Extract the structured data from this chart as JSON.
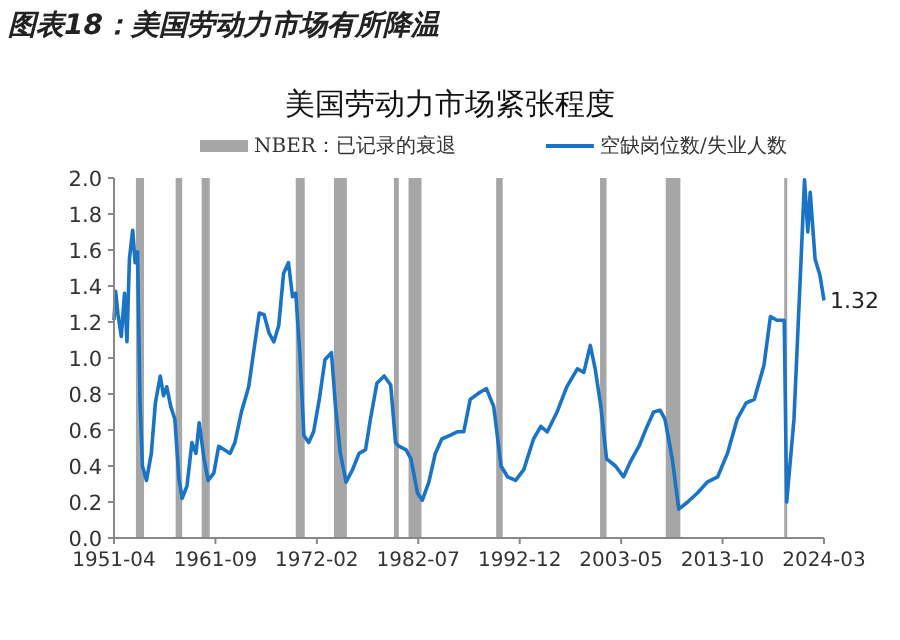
{
  "chart_data": {
    "type": "line",
    "title": "图表18：美国劳动力市场有所降温",
    "subtitle": "美国劳动力市场紧张程度",
    "xlim": [
      "1951-04",
      "2024-03"
    ],
    "xticks": [
      "1951-04",
      "1961-09",
      "1972-02",
      "1982-07",
      "1992-12",
      "2003-05",
      "2013-10",
      "2024-03"
    ],
    "ylim": [
      0,
      2
    ],
    "yticks": [
      {
        "value": 0,
        "label": "0.0"
      },
      {
        "value": 0.2,
        "label": "0.2"
      },
      {
        "value": 0.4,
        "label": "0.4"
      },
      {
        "value": 0.6,
        "label": "0.6"
      },
      {
        "value": 0.8,
        "label": "0.8"
      },
      {
        "value": 1,
        "label": "1.0"
      },
      {
        "value": 1.2,
        "label": "1.2"
      },
      {
        "value": 1.4,
        "label": "1.4"
      },
      {
        "value": 1.6,
        "label": "1.6"
      },
      {
        "value": 1.8,
        "label": "1.8"
      },
      {
        "value": 2,
        "label": "2.0"
      }
    ],
    "grid": false,
    "legend": "top",
    "marker": "none",
    "line_style": "solid",
    "bands": [
      {
        "axis": "x",
        "from": "1953-07",
        "to": "1954-05",
        "label": "NBER：已记录的衰退",
        "color": "#a6a6a6"
      },
      {
        "axis": "x",
        "from": "1957-08",
        "to": "1958-04",
        "color": "#a6a6a6"
      },
      {
        "axis": "x",
        "from": "1960-04",
        "to": "1961-02",
        "color": "#a6a6a6"
      },
      {
        "axis": "x",
        "from": "1969-12",
        "to": "1970-11",
        "color": "#a6a6a6"
      },
      {
        "axis": "x",
        "from": "1973-11",
        "to": "1975-03",
        "color": "#a6a6a6"
      },
      {
        "axis": "x",
        "from": "1980-01",
        "to": "1980-07",
        "color": "#a6a6a6"
      },
      {
        "axis": "x",
        "from": "1981-07",
        "to": "1982-11",
        "color": "#a6a6a6"
      },
      {
        "axis": "x",
        "from": "1990-07",
        "to": "1991-03",
        "color": "#a6a6a6"
      },
      {
        "axis": "x",
        "from": "2001-03",
        "to": "2001-11",
        "color": "#a6a6a6"
      },
      {
        "axis": "x",
        "from": "2007-12",
        "to": "2009-06",
        "color": "#a6a6a6"
      },
      {
        "axis": "x",
        "from": "2020-02",
        "to": "2020-04",
        "color": "#a6a6a6"
      }
    ],
    "annotations": [
      {
        "text": "1.32",
        "x": "2024-03",
        "y": 1.32
      }
    ],
    "x": [
      "1951-04",
      "1951-06",
      "1951-09",
      "1952-01",
      "1952-05",
      "1952-08",
      "1952-11",
      "1953-03",
      "1953-06",
      "1953-09",
      "1953-12",
      "1954-03",
      "1954-08",
      "1955-02",
      "1955-07",
      "1956-01",
      "1956-05",
      "1956-09",
      "1957-02",
      "1957-07",
      "1957-12",
      "1958-04",
      "1958-10",
      "1959-04",
      "1959-09",
      "1960-01",
      "1960-07",
      "1960-12",
      "1961-07",
      "1962-01",
      "1962-08",
      "1963-03",
      "1963-09",
      "1964-05",
      "1965-02",
      "1965-08",
      "1966-03",
      "1966-09",
      "1967-03",
      "1967-09",
      "1968-03",
      "1968-09",
      "1969-03",
      "1969-08",
      "1969-12",
      "1970-05",
      "1970-10",
      "1971-04",
      "1971-10",
      "1972-05",
      "1972-12",
      "1973-08",
      "1974-01",
      "1974-07",
      "1975-02",
      "1975-10",
      "1976-06",
      "1977-02",
      "1977-08",
      "1978-04",
      "1979-01",
      "1979-09",
      "1980-03",
      "1980-07",
      "1981-04",
      "1981-10",
      "1982-06",
      "1982-12",
      "1983-08",
      "1984-04",
      "1984-12",
      "1985-10",
      "1986-07",
      "1987-03",
      "1987-11",
      "1988-11",
      "1989-07",
      "1990-04",
      "1991-01",
      "1991-09",
      "1992-07",
      "1993-05",
      "1994-05",
      "1995-02",
      "1995-10",
      "1996-10",
      "1997-10",
      "1998-11",
      "1999-07",
      "2000-03",
      "2000-09",
      "2001-04",
      "2001-11",
      "2002-10",
      "2003-08",
      "2004-04",
      "2005-03",
      "2006-01",
      "2006-09",
      "2007-05",
      "2007-11",
      "2008-08",
      "2009-04",
      "2010-03",
      "2011-03",
      "2012-03",
      "2013-04",
      "2014-04",
      "2015-04",
      "2016-03",
      "2017-01",
      "2018-01",
      "2018-09",
      "2019-05",
      "2020-02",
      "2020-05",
      "2021-02",
      "2021-10",
      "2022-03",
      "2022-07",
      "2022-10",
      "2023-04",
      "2023-10",
      "2024-03"
    ],
    "series": [
      {
        "name": "空缺岗位数/失业人数",
        "color": "#1a73c4",
        "values": [
          1.21,
          1.37,
          1.24,
          1.12,
          1.36,
          1.09,
          1.55,
          1.71,
          1.53,
          1.59,
          0.77,
          0.4,
          0.32,
          0.47,
          0.75,
          0.9,
          0.79,
          0.84,
          0.73,
          0.66,
          0.33,
          0.22,
          0.29,
          0.53,
          0.47,
          0.64,
          0.44,
          0.32,
          0.36,
          0.51,
          0.49,
          0.47,
          0.53,
          0.7,
          0.84,
          1.03,
          1.25,
          1.24,
          1.14,
          1.09,
          1.18,
          1.47,
          1.53,
          1.34,
          1.36,
          1.03,
          0.57,
          0.53,
          0.59,
          0.77,
          0.99,
          1.03,
          0.73,
          0.47,
          0.31,
          0.38,
          0.47,
          0.49,
          0.66,
          0.86,
          0.9,
          0.85,
          0.53,
          0.51,
          0.49,
          0.44,
          0.25,
          0.21,
          0.31,
          0.47,
          0.55,
          0.57,
          0.59,
          0.59,
          0.77,
          0.81,
          0.83,
          0.73,
          0.4,
          0.34,
          0.32,
          0.38,
          0.55,
          0.62,
          0.59,
          0.7,
          0.84,
          0.94,
          0.92,
          1.07,
          0.94,
          0.73,
          0.44,
          0.4,
          0.34,
          0.42,
          0.51,
          0.62,
          0.7,
          0.71,
          0.66,
          0.44,
          0.16,
          0.2,
          0.25,
          0.31,
          0.34,
          0.47,
          0.66,
          0.75,
          0.77,
          0.96,
          1.23,
          1.21,
          1.21,
          0.2,
          0.66,
          1.47,
          1.99,
          1.7,
          1.92,
          1.55,
          1.46,
          1.32
        ]
      }
    ]
  }
}
